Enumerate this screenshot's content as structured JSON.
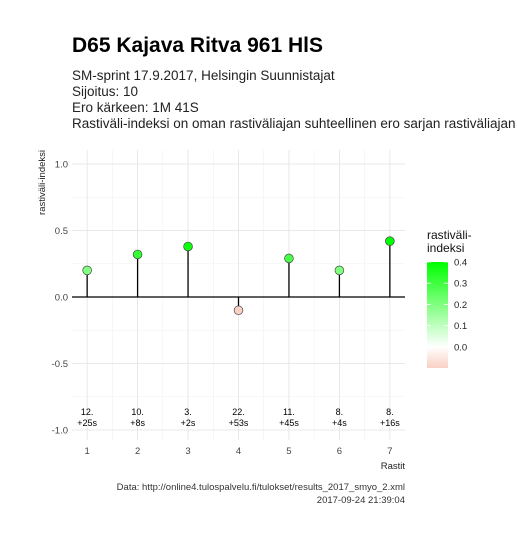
{
  "header": {
    "title": "D65 Kajava Ritva 961 HlS",
    "subtitle": "SM-sprint 17.9.2017, Helsingin Suunnistajat",
    "placement": "Sijoitus: 10",
    "gap_to_leader": "Ero kärkeen: 1M 41S",
    "description": "Rastiväli-indeksi on oman rastiväliajan suhteellinen ero sarjan rastiväliajan kes"
  },
  "footer": {
    "data_source": "Data: http://online4.tulospalvelu.fi/tulokset/results_2017_smyo_2.xml",
    "timestamp": "2017-09-24 21:39:04"
  },
  "chart_data": {
    "type": "lollipop",
    "xlabel": "Rastit",
    "ylabel": "rastiväli-indeksi",
    "ylim": [
      -1.0,
      1.0
    ],
    "yticks": [
      -1.0,
      -0.5,
      0.0,
      0.5,
      1.0
    ],
    "ytick_labels": [
      "-1.0",
      "-0.5",
      "0.0",
      "0.5",
      "1.0"
    ],
    "x": [
      1,
      2,
      3,
      4,
      5,
      6,
      7
    ],
    "values": [
      0.2,
      0.32,
      0.38,
      -0.1,
      0.29,
      0.2,
      0.42
    ],
    "leg_rank": [
      "12.",
      "10.",
      "3.",
      "22.",
      "11.",
      "8.",
      "8."
    ],
    "leg_diff": [
      "+25s",
      "+8s",
      "+2s",
      "+53s",
      "+45s",
      "+4s",
      "+16s"
    ],
    "grid": true,
    "legend": {
      "title_line1": "rastiväli-",
      "title_line2": "indeksi",
      "ticks": [
        0.4,
        0.3,
        0.2,
        0.1,
        0.0
      ],
      "tick_labels": [
        "0.4",
        "0.3",
        "0.2",
        "0.1",
        "0.0"
      ],
      "color_low": "#f9d0c4",
      "color_mid": "#ffffff",
      "color_high": "#00ff00",
      "placement": "right"
    }
  }
}
